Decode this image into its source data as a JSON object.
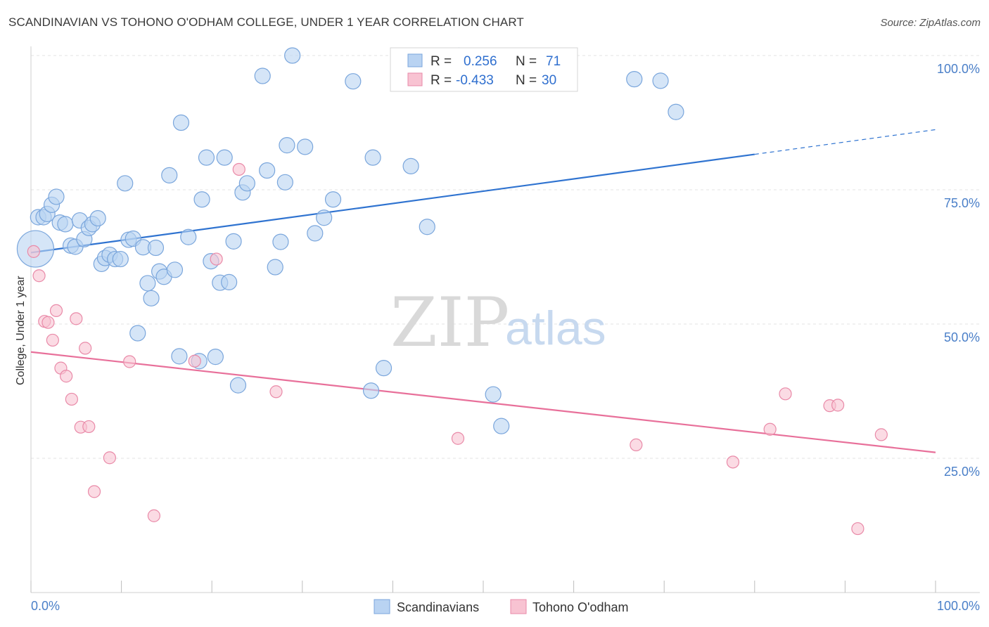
{
  "header": {
    "title": "SCANDINAVIAN VS TOHONO O'ODHAM COLLEGE, UNDER 1 YEAR CORRELATION CHART",
    "source": "Source: ZipAtlas.com"
  },
  "watermark": {
    "zip": "ZIP",
    "atlas": "atlas"
  },
  "stats": {
    "row1": {
      "r_label": "R =",
      "r_value": "0.256",
      "n_label": "N =",
      "n_value": "71"
    },
    "row2": {
      "r_label": "R =",
      "r_value": "-0.433",
      "n_label": "N =",
      "n_value": "30"
    }
  },
  "colors": {
    "blue_fill": "#b9d3f2",
    "blue_stroke": "#7aa6dc",
    "blue_line": "#2f73d0",
    "pink_fill": "#f8c3d2",
    "pink_stroke": "#e98aa8",
    "pink_line": "#e8709a",
    "grid": "#e3e3e3",
    "tick_text": "#4a7fc8"
  },
  "chart_data": {
    "type": "scatter",
    "title": "SCANDINAVIAN VS TOHONO O'ODHAM COLLEGE, UNDER 1 YEAR CORRELATION CHART",
    "xlabel": "",
    "ylabel": "College, Under 1 year",
    "xlim": [
      0,
      100
    ],
    "ylim": [
      0,
      100
    ],
    "x_tick_labels": [
      "0.0%",
      "100.0%"
    ],
    "y_ticks": [
      25,
      50,
      75,
      100
    ],
    "y_tick_labels": [
      "25.0%",
      "50.0%",
      "75.0%",
      "100.0%"
    ],
    "grid": true,
    "legend_position": "bottom-center",
    "series": [
      {
        "name": "Scandinavians",
        "color": "#b9d3f2",
        "r": 0.256,
        "n": 71,
        "trend": {
          "x0": 0,
          "y0": 63.3,
          "x1": 80,
          "y1": 81.6,
          "dash_to_x": 100,
          "dash_to_y": 86.2
        },
        "points": [
          [
            0.5,
            64.0,
            26
          ],
          [
            0.8,
            69.9,
            11
          ],
          [
            1.4,
            69.9,
            11
          ],
          [
            1.8,
            70.5,
            11
          ],
          [
            2.3,
            72.2,
            11
          ],
          [
            2.8,
            73.7,
            11
          ],
          [
            3.2,
            68.9,
            11
          ],
          [
            3.8,
            68.6,
            11
          ],
          [
            4.4,
            64.6,
            11
          ],
          [
            4.9,
            64.4,
            11
          ],
          [
            5.4,
            69.3,
            11
          ],
          [
            5.9,
            65.8,
            11
          ],
          [
            6.4,
            67.9,
            11
          ],
          [
            6.8,
            68.6,
            11
          ],
          [
            7.4,
            69.7,
            11
          ],
          [
            7.8,
            61.2,
            11
          ],
          [
            8.2,
            62.3,
            11
          ],
          [
            8.7,
            62.9,
            11
          ],
          [
            9.3,
            62.1,
            11
          ],
          [
            9.9,
            62.1,
            11
          ],
          [
            10.4,
            76.2,
            11
          ],
          [
            10.8,
            65.7,
            11
          ],
          [
            11.3,
            65.9,
            11
          ],
          [
            11.8,
            48.3,
            11
          ],
          [
            12.4,
            64.3,
            11
          ],
          [
            12.9,
            57.6,
            11
          ],
          [
            13.3,
            54.8,
            11
          ],
          [
            13.8,
            64.2,
            11
          ],
          [
            14.2,
            59.8,
            11
          ],
          [
            14.7,
            58.8,
            11
          ],
          [
            15.3,
            77.7,
            11
          ],
          [
            15.9,
            60.1,
            11
          ],
          [
            16.4,
            44.0,
            11
          ],
          [
            16.6,
            87.5,
            11
          ],
          [
            17.4,
            66.2,
            11
          ],
          [
            18.6,
            43.1,
            11
          ],
          [
            18.9,
            73.2,
            11
          ],
          [
            19.4,
            81.0,
            11
          ],
          [
            19.9,
            61.7,
            11
          ],
          [
            20.4,
            43.9,
            11
          ],
          [
            20.9,
            57.7,
            11
          ],
          [
            21.4,
            81.0,
            11
          ],
          [
            21.9,
            57.8,
            11
          ],
          [
            22.4,
            65.4,
            11
          ],
          [
            22.9,
            38.6,
            11
          ],
          [
            23.4,
            74.5,
            11
          ],
          [
            23.9,
            76.2,
            11
          ],
          [
            25.6,
            96.2,
            11
          ],
          [
            26.1,
            78.6,
            11
          ],
          [
            27.0,
            60.6,
            11
          ],
          [
            27.6,
            65.3,
            11
          ],
          [
            28.1,
            76.4,
            11
          ],
          [
            28.3,
            83.3,
            11
          ],
          [
            28.9,
            100.0,
            11
          ],
          [
            30.3,
            83.0,
            11
          ],
          [
            31.4,
            66.9,
            11
          ],
          [
            32.4,
            69.8,
            11
          ],
          [
            33.4,
            73.2,
            11
          ],
          [
            35.6,
            95.2,
            11
          ],
          [
            37.6,
            37.6,
            11
          ],
          [
            37.8,
            81.0,
            11
          ],
          [
            39.0,
            41.8,
            11
          ],
          [
            42.0,
            79.4,
            11
          ],
          [
            43.8,
            68.1,
            11
          ],
          [
            47.3,
            100.0,
            11
          ],
          [
            48.2,
            95.0,
            11
          ],
          [
            51.1,
            36.9,
            11
          ],
          [
            52.0,
            31.0,
            11
          ],
          [
            66.7,
            95.6,
            11
          ],
          [
            69.6,
            95.3,
            11
          ],
          [
            71.3,
            89.5,
            11
          ]
        ]
      },
      {
        "name": "Tohono O'odham",
        "color": "#f8c3d2",
        "r": -0.433,
        "n": 30,
        "trend": {
          "x0": 0,
          "y0": 44.8,
          "x1": 100,
          "y1": 26.1
        },
        "points": [
          [
            0.3,
            63.5
          ],
          [
            0.9,
            59.0
          ],
          [
            1.5,
            50.5
          ],
          [
            1.9,
            50.3
          ],
          [
            2.4,
            47.0
          ],
          [
            2.8,
            52.5
          ],
          [
            3.3,
            41.8
          ],
          [
            3.9,
            40.3
          ],
          [
            4.5,
            36.0
          ],
          [
            5.0,
            51.0
          ],
          [
            5.5,
            30.8
          ],
          [
            6.0,
            45.5
          ],
          [
            6.4,
            30.9
          ],
          [
            7.0,
            18.8
          ],
          [
            8.7,
            25.1
          ],
          [
            10.9,
            43.0
          ],
          [
            13.6,
            14.3
          ],
          [
            18.1,
            43.1
          ],
          [
            20.5,
            62.1
          ],
          [
            23.0,
            78.8
          ],
          [
            27.1,
            37.4
          ],
          [
            47.2,
            28.7
          ],
          [
            66.9,
            27.5
          ],
          [
            77.6,
            24.3
          ],
          [
            81.7,
            30.4
          ],
          [
            83.4,
            37.0
          ],
          [
            88.3,
            34.8
          ],
          [
            89.2,
            34.9
          ],
          [
            91.4,
            11.9
          ],
          [
            94.0,
            29.4
          ]
        ]
      }
    ]
  },
  "legend": {
    "items": [
      {
        "label": "Scandinavians"
      },
      {
        "label": "Tohono O'odham"
      }
    ]
  }
}
